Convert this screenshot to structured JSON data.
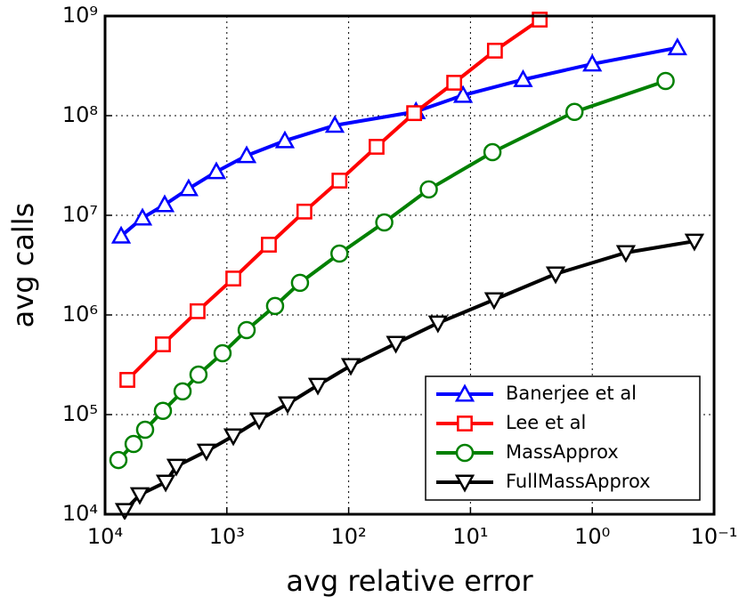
{
  "chart_data": {
    "type": "line",
    "xlabel": "avg relative error",
    "ylabel": "avg calls",
    "xscale": "log",
    "yscale": "log",
    "grid": true,
    "legend": "lower right",
    "xlim": [
      10000,
      0.1
    ],
    "ylim": [
      10000,
      1000000000
    ],
    "xticks": [
      {
        "value": 10000,
        "label": "10⁴"
      },
      {
        "value": 1000,
        "label": "10³"
      },
      {
        "value": 100,
        "label": "10²"
      },
      {
        "value": 10,
        "label": "10¹"
      },
      {
        "value": 1,
        "label": "10⁰"
      },
      {
        "value": 0.1,
        "label": "10⁻¹"
      }
    ],
    "yticks": [
      {
        "value": 10000,
        "label": "10⁴"
      },
      {
        "value": 100000,
        "label": "10⁵"
      },
      {
        "value": 1000000,
        "label": "10⁶"
      },
      {
        "value": 10000000,
        "label": "10⁷"
      },
      {
        "value": 100000000,
        "label": "10⁸"
      },
      {
        "value": 1000000000,
        "label": "10⁹"
      }
    ],
    "series": [
      {
        "name": "Banerjee et al",
        "color": "#0000ff",
        "marker": "triangle-up",
        "x": [
          7380,
          4930,
          3240,
          2060,
          1220,
          688,
          334,
          130,
          28,
          11.5,
          3.7,
          1.0,
          0.2
        ],
        "values": [
          6200000,
          9400000,
          12800000,
          18500000,
          27400000,
          39700000,
          56000000,
          80000000,
          110000000,
          160000000,
          230000000,
          330000000,
          480000000
        ]
      },
      {
        "name": "Lee et al",
        "color": "#ff0000",
        "marker": "square",
        "x": [
          6560,
          3350,
          1740,
          885,
          452,
          231,
          119,
          59,
          29,
          13.6,
          6.3,
          2.7
        ],
        "values": [
          223000,
          507000,
          1090000,
          2320000,
          5070000,
          10900000,
          22300000,
          48700000,
          106000000,
          214000000,
          449000000,
          920000000
        ]
      },
      {
        "name": "MassApprox",
        "color": "#008000",
        "marker": "circle",
        "x": [
          7770,
          5830,
          4690,
          3350,
          2310,
          1710,
          1085,
          688,
          402,
          251,
          119,
          51,
          22,
          6.6,
          1.4,
          0.25
        ],
        "values": [
          35000,
          50700,
          70500,
          109000,
          171000,
          252000,
          413000,
          705000,
          1230000,
          2100000,
          4130000,
          8480000,
          18200000,
          43000000,
          109000000,
          223000000
        ]
      },
      {
        "name": "FullMassApprox",
        "color": "#000000",
        "marker": "triangle-down",
        "x": [
          6900,
          5190,
          3180,
          2600,
          1470,
          885,
          543,
          317,
          179,
          96,
          41,
          18.5,
          6.4,
          2.0,
          0.53,
          0.145
        ],
        "values": [
          10900,
          15700,
          21000,
          30300,
          43000,
          61100,
          88400,
          128000,
          197000,
          310000,
          518000,
          830000,
          1420000,
          2580000,
          4220000,
          5500000
        ]
      }
    ]
  }
}
